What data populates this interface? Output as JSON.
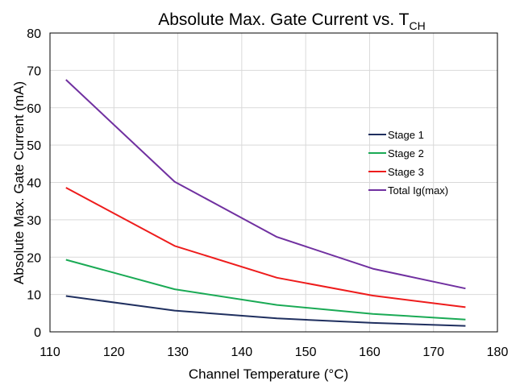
{
  "chart_data": {
    "type": "line",
    "title": "Absolute Max. Gate Current vs. T",
    "title_subscript": "CH",
    "xlabel": "Channel Temperature (°C)",
    "ylabel": "Absolute Max. Gate Current (mA)",
    "xlim": [
      110,
      180
    ],
    "ylim": [
      0,
      80
    ],
    "x_ticks": [
      110,
      120,
      130,
      140,
      150,
      160,
      170,
      180
    ],
    "y_ticks": [
      0,
      10,
      20,
      30,
      40,
      50,
      60,
      70,
      80
    ],
    "grid": true,
    "legend_position": "right",
    "series": [
      {
        "name": "Stage 1",
        "color": "#1f2f5f",
        "x": [
          112.5,
          129.5,
          145.5,
          160.5,
          175
        ],
        "y": [
          9.6,
          5.7,
          3.6,
          2.4,
          1.6
        ]
      },
      {
        "name": "Stage 2",
        "color": "#1aaa55",
        "x": [
          112.5,
          129.5,
          145.5,
          160.5,
          175
        ],
        "y": [
          19.3,
          11.4,
          7.2,
          4.8,
          3.3
        ]
      },
      {
        "name": "Stage 3",
        "color": "#ee1c1c",
        "x": [
          112.5,
          129.5,
          145.5,
          160.5,
          175
        ],
        "y": [
          38.6,
          23.0,
          14.5,
          9.7,
          6.6
        ]
      },
      {
        "name": "Total Ig(max)",
        "color": "#7030a0",
        "x": [
          112.5,
          129.5,
          145.5,
          160.5,
          175
        ],
        "y": [
          67.5,
          40.2,
          25.4,
          16.9,
          11.6
        ]
      }
    ]
  }
}
